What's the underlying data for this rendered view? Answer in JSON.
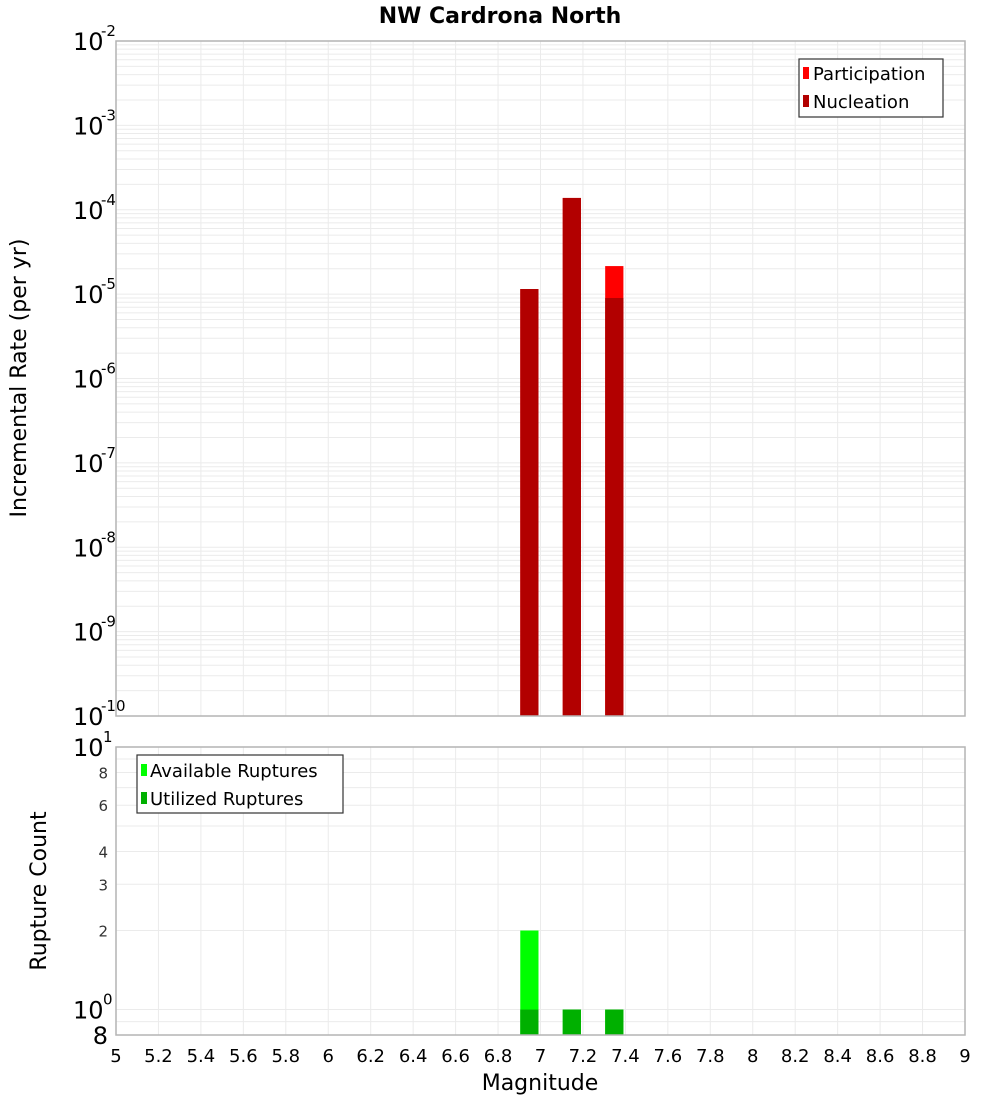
{
  "chart_data": [
    {
      "type": "bar",
      "title": "NW Cardrona North",
      "xlabel": "Magnitude",
      "ylabel": "Incremental Rate (per yr)",
      "yscale": "log",
      "ylim": [
        1e-10,
        0.01
      ],
      "xlim": [
        5,
        9
      ],
      "y_ticks": [
        {
          "exp": "-2",
          "value": 0.01
        },
        {
          "exp": "-3",
          "value": 0.001
        },
        {
          "exp": "-4",
          "value": 0.0001
        },
        {
          "exp": "-5",
          "value": 1e-05
        },
        {
          "exp": "-6",
          "value": 1e-06
        },
        {
          "exp": "-7",
          "value": 1e-07
        },
        {
          "exp": "-8",
          "value": 1e-08
        },
        {
          "exp": "-9",
          "value": 1e-09
        },
        {
          "exp": "-10",
          "value": 1e-10
        }
      ],
      "grid": true,
      "legend_position": "top-right",
      "bin_width": 0.1,
      "categories": [
        6.95,
        7.15,
        7.35
      ],
      "series": [
        {
          "name": "Participation",
          "color": "#ff0000",
          "values": [
            1.15e-05,
            0.000138,
            2.15e-05
          ]
        },
        {
          "name": "Nucleation",
          "color": "#b20000",
          "values": [
            1.15e-05,
            0.000138,
            9e-06
          ]
        }
      ]
    },
    {
      "type": "bar",
      "title": "",
      "xlabel": "Magnitude",
      "ylabel": "Rupture Count",
      "yscale": "log",
      "ylim": [
        0.8,
        10
      ],
      "xlim": [
        5,
        9
      ],
      "y_ticks": [
        {
          "label": "10",
          "exp": "1",
          "value": 10,
          "major": true
        },
        {
          "label": "8",
          "value": 8,
          "major": false
        },
        {
          "label": "6",
          "value": 6,
          "major": false
        },
        {
          "label": "4",
          "value": 4,
          "major": false
        },
        {
          "label": "3",
          "value": 3,
          "major": false
        },
        {
          "label": "2",
          "value": 2,
          "major": false
        },
        {
          "label": "10",
          "exp": "0",
          "value": 1,
          "major": true
        },
        {
          "label": "8",
          "value": 0.8,
          "major": true
        }
      ],
      "x_ticks": [
        "5",
        "5.2",
        "5.4",
        "5.6",
        "5.8",
        "6",
        "6.2",
        "6.4",
        "6.6",
        "6.8",
        "7",
        "7.2",
        "7.4",
        "7.6",
        "7.8",
        "8",
        "8.2",
        "8.4",
        "8.6",
        "8.8",
        "9"
      ],
      "grid": true,
      "legend_position": "top-left",
      "bin_width": 0.1,
      "categories": [
        6.95,
        7.15,
        7.35
      ],
      "series": [
        {
          "name": "Available Ruptures",
          "color": "#00ff00",
          "values": [
            2,
            1,
            1
          ]
        },
        {
          "name": "Utilized Ruptures",
          "color": "#00b000",
          "values": [
            1,
            1,
            1
          ]
        }
      ]
    }
  ]
}
